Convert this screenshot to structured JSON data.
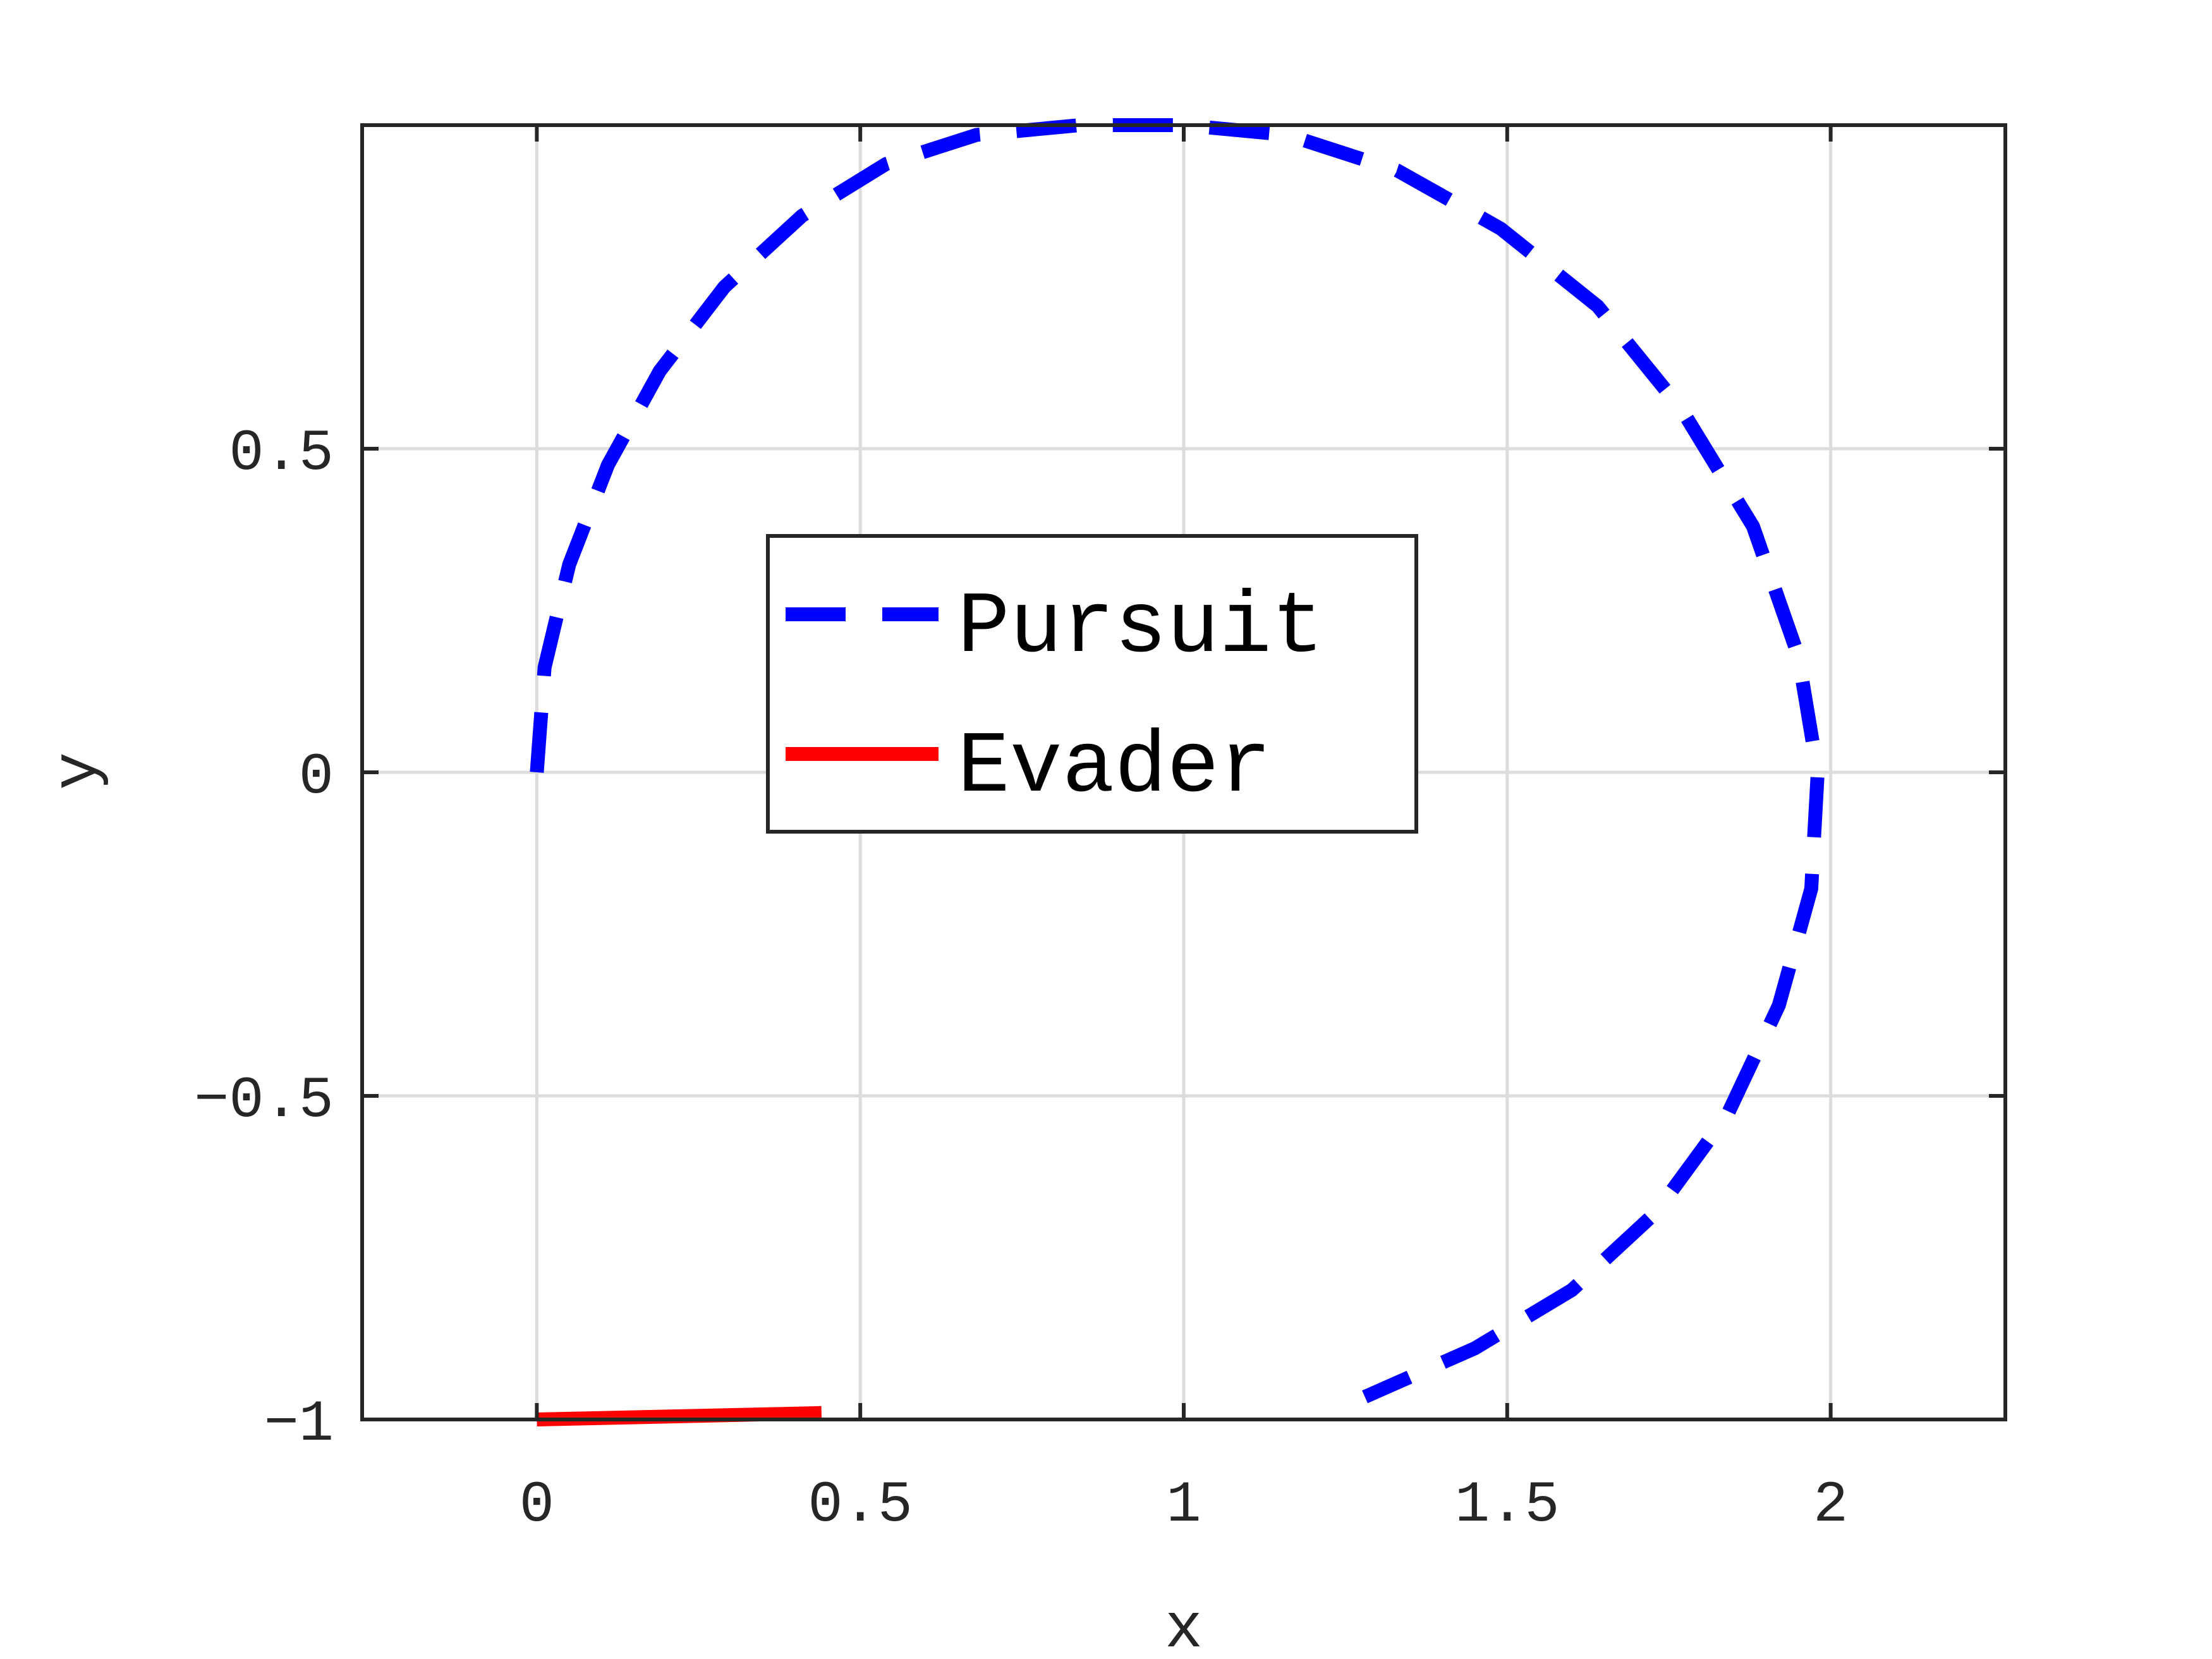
{
  "chart_data": {
    "type": "line",
    "xlabel": "x",
    "ylabel": "y",
    "xlim": [
      -0.27,
      2.27
    ],
    "ylim": [
      -1,
      1
    ],
    "x_ticks": [
      0,
      0.5,
      1,
      1.5,
      2
    ],
    "y_ticks": [
      -1,
      -0.5,
      0,
      0.5
    ],
    "x_tick_labels": [
      "0",
      "0.5",
      "1",
      "1.5",
      "2"
    ],
    "y_tick_labels": [
      "−1",
      "−0.5",
      "0",
      "0.5"
    ],
    "grid": true,
    "legend_position": "center",
    "series": [
      {
        "name": "Pursuit",
        "color": "#0000ff",
        "line_style": "dashed",
        "points": [
          [
            0.0,
            0.0
          ],
          [
            0.012,
            0.162
          ],
          [
            0.05,
            0.321
          ],
          [
            0.11,
            0.475
          ],
          [
            0.19,
            0.62
          ],
          [
            0.29,
            0.75
          ],
          [
            0.41,
            0.86
          ],
          [
            0.54,
            0.94
          ],
          [
            0.68,
            0.985
          ],
          [
            0.84,
            1.0
          ],
          [
            1.0,
            1.0
          ],
          [
            1.16,
            0.985
          ],
          [
            1.33,
            0.93
          ],
          [
            1.49,
            0.84
          ],
          [
            1.64,
            0.72
          ],
          [
            1.77,
            0.56
          ],
          [
            1.88,
            0.38
          ],
          [
            1.95,
            0.18
          ],
          [
            1.98,
            0.0
          ],
          [
            1.97,
            -0.18
          ],
          [
            1.92,
            -0.36
          ],
          [
            1.84,
            -0.53
          ],
          [
            1.73,
            -0.68
          ],
          [
            1.6,
            -0.8
          ],
          [
            1.45,
            -0.89
          ],
          [
            1.28,
            -0.965
          ]
        ]
      },
      {
        "name": "Evader",
        "color": "#ff0000",
        "line_style": "solid",
        "points": [
          [
            0.0,
            -1.0
          ],
          [
            0.44,
            -0.99
          ]
        ]
      }
    ]
  }
}
